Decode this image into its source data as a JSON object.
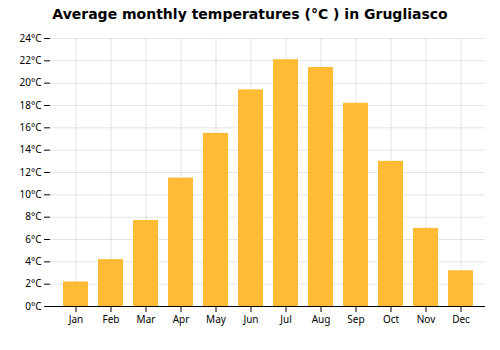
{
  "chart_data": {
    "type": "bar",
    "title": "Average monthly temperatures (°C ) in Grugliasco",
    "categories": [
      "Jan",
      "Feb",
      "Mar",
      "Apr",
      "May",
      "Jun",
      "Jul",
      "Aug",
      "Sep",
      "Oct",
      "Nov",
      "Dec"
    ],
    "values": [
      2.2,
      4.2,
      7.7,
      11.5,
      15.5,
      19.4,
      22.1,
      21.4,
      18.2,
      13.0,
      7.0,
      3.2
    ],
    "color": "#FFBB33",
    "ylim": [
      0,
      24
    ],
    "yticks": [
      {
        "value": 0,
        "label": "0°C"
      },
      {
        "value": 2,
        "label": "2°C"
      },
      {
        "value": 4,
        "label": "4°C"
      },
      {
        "value": 6,
        "label": "6°C"
      },
      {
        "value": 8,
        "label": "8°C"
      },
      {
        "value": 10,
        "label": "10°C"
      },
      {
        "value": 12,
        "label": "12°C"
      },
      {
        "value": 14,
        "label": "14°C"
      },
      {
        "value": 16,
        "label": "16°C"
      },
      {
        "value": 18,
        "label": "18°C"
      },
      {
        "value": 20,
        "label": "20°C"
      },
      {
        "value": 22,
        "label": "22°C"
      },
      {
        "value": 24,
        "label": "24°C"
      }
    ],
    "grid": true
  }
}
